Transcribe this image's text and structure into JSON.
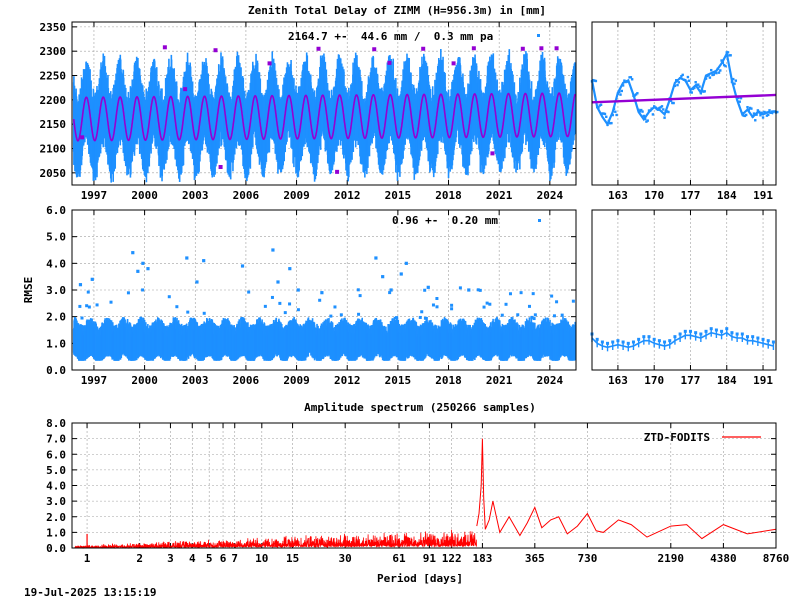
{
  "title": "Zenith Total Delay of ZIMM (H=956.3m) in [mm]",
  "timestamp": "19-Jul-2025 13:15:19",
  "colors": {
    "data": "#1e90ff",
    "model": "#9400d3",
    "outlier": "#9400d3",
    "spectrum": "#ff0000",
    "grid": "#a0a0a0"
  },
  "chart_data": [
    {
      "id": "ztd_timeseries",
      "type": "scatter",
      "title": "Zenith Total Delay of ZIMM (H=956.3m) in [mm]",
      "annotation": "2164.7 +-  44.6 mm /  0.3 mm pa",
      "ylabel": "",
      "xlim": [
        1995.7,
        2025.55
      ],
      "ylim": [
        2025,
        2360
      ],
      "x_ticks": [
        "1997",
        "2000",
        "2003",
        "2006",
        "2009",
        "2012",
        "2015",
        "2018",
        "2021",
        "2024"
      ],
      "x_tick_values": [
        1997,
        2000,
        2003,
        2006,
        2009,
        2012,
        2015,
        2018,
        2021,
        2024
      ],
      "y_ticks": [
        "2050",
        "2100",
        "2150",
        "2200",
        "2250",
        "2300",
        "2350"
      ],
      "y_tick_values": [
        2050,
        2100,
        2150,
        2200,
        2250,
        2300,
        2350
      ],
      "series": [
        {
          "kind": "seasonal_range",
          "start_year": 1995.8,
          "end_year": 2025.5,
          "mean": 2164.7,
          "amplitude": 44.6,
          "trend_mm_per_year": 0.3,
          "spread": 60
        },
        {
          "kind": "model_fit",
          "mean": 2164.7,
          "amplitude": 44.6,
          "trend_mm_per_year": 0.3
        },
        {
          "kind": "outliers",
          "x": [
            1996.3,
            2001.2,
            2002.4,
            2004.2,
            2004.5,
            2007.4,
            2010.3,
            2011.4,
            2013.6,
            2014.5,
            2016.5,
            2018.3,
            2019.5,
            2020.6,
            2022.4,
            2023.5,
            2024.4
          ],
          "y": [
            2123,
            2308,
            2222,
            2302,
            2062,
            2275,
            2305,
            2052,
            2304,
            2276,
            2305,
            2275,
            2306,
            2090,
            2305,
            2306,
            2306
          ]
        }
      ]
    },
    {
      "id": "ztd_zoom",
      "type": "line",
      "xlim": [
        158,
        193.5
      ],
      "ylim": [
        2025,
        2360
      ],
      "x_ticks": [
        "163",
        "170",
        "177",
        "184",
        "191"
      ],
      "x_tick_values": [
        163,
        170,
        177,
        184,
        191
      ],
      "series": [
        {
          "kind": "data",
          "x": [
            158,
            159,
            160,
            161,
            162,
            163,
            164,
            165,
            166,
            167,
            168,
            169,
            170,
            171,
            172,
            173,
            174,
            175,
            176,
            177,
            178,
            179,
            180,
            181,
            182,
            183,
            184,
            185,
            186,
            187,
            188,
            189,
            190,
            191,
            192,
            193
          ],
          "y": [
            2240,
            2185,
            2165,
            2150,
            2175,
            2215,
            2235,
            2240,
            2210,
            2175,
            2160,
            2175,
            2185,
            2180,
            2170,
            2200,
            2235,
            2245,
            2240,
            2220,
            2230,
            2215,
            2250,
            2255,
            2260,
            2275,
            2295,
            2240,
            2200,
            2170,
            2180,
            2165,
            2175,
            2170,
            2175,
            2172
          ]
        },
        {
          "kind": "model_fit",
          "x": [
            158,
            193.5
          ],
          "y": [
            2195,
            2210
          ]
        }
      ]
    },
    {
      "id": "rmse_timeseries",
      "type": "scatter",
      "annotation": "0.96 +-  0.20 mm",
      "ylabel": "RMSE",
      "xlim": [
        1995.7,
        2025.55
      ],
      "ylim": [
        0,
        6
      ],
      "x_ticks": [
        "1997",
        "2000",
        "2003",
        "2006",
        "2009",
        "2012",
        "2015",
        "2018",
        "2021",
        "2024"
      ],
      "x_tick_values": [
        1997,
        2000,
        2003,
        2006,
        2009,
        2012,
        2015,
        2018,
        2021,
        2024
      ],
      "y_ticks": [
        "0.0",
        "1.0",
        "2.0",
        "3.0",
        "4.0",
        "5.0",
        "6.0"
      ],
      "y_tick_values": [
        0,
        1,
        2,
        3,
        4,
        5,
        6
      ],
      "series": [
        {
          "kind": "band",
          "start_year": 1995.8,
          "end_year": 2025.5,
          "mean": 0.96,
          "spread": 0.6
        },
        {
          "kind": "outliers",
          "x": [
            1996.2,
            1996.9,
            1999.3,
            1999.6,
            1999.9,
            2000.2,
            2002.5,
            2003.1,
            2003.5,
            2005.8,
            2007.6,
            2007.9,
            2008.6,
            2009.1,
            2010.5,
            2013.7,
            2014.1,
            2014.6,
            2015.2,
            2015.5,
            2016.8,
            2019.2
          ],
          "y": [
            3.2,
            3.4,
            4.4,
            3.7,
            4.0,
            3.8,
            4.2,
            3.3,
            4.1,
            3.9,
            4.5,
            3.3,
            3.8,
            3.0,
            2.9,
            4.2,
            3.5,
            3.0,
            3.6,
            4.0,
            3.1,
            3.0
          ]
        }
      ]
    },
    {
      "id": "rmse_zoom",
      "type": "line",
      "xlim": [
        158,
        193.5
      ],
      "ylim": [
        0,
        6
      ],
      "x_ticks": [
        "163",
        "170",
        "177",
        "184",
        "191"
      ],
      "x_tick_values": [
        163,
        170,
        177,
        184,
        191
      ],
      "series": [
        {
          "kind": "data",
          "x": [
            158,
            159,
            160,
            161,
            162,
            163,
            164,
            165,
            166,
            167,
            168,
            169,
            170,
            171,
            172,
            173,
            174,
            175,
            176,
            177,
            178,
            179,
            180,
            181,
            182,
            183,
            184,
            185,
            186,
            187,
            188,
            189,
            190,
            191,
            192,
            193
          ],
          "y": [
            1.2,
            1.0,
            0.9,
            0.85,
            0.9,
            0.95,
            0.9,
            0.85,
            0.9,
            1.0,
            1.1,
            1.1,
            1.0,
            0.95,
            0.9,
            0.95,
            1.1,
            1.2,
            1.3,
            1.3,
            1.25,
            1.2,
            1.3,
            1.4,
            1.35,
            1.3,
            1.4,
            1.25,
            1.2,
            1.2,
            1.1,
            1.1,
            1.05,
            1.0,
            0.95,
            0.9
          ]
        }
      ]
    },
    {
      "id": "amplitude_spectrum",
      "type": "line",
      "title": "Amplitude spectrum (250266 samples)",
      "xlabel": "Period [days]",
      "legend": "ZTD-FODITS",
      "legend_position": "top-right",
      "x_scale": "log",
      "xlim": [
        0.82,
        8760
      ],
      "ylim": [
        0,
        8
      ],
      "x_ticks": [
        "1",
        "2",
        "3",
        "4",
        "5",
        "6",
        "7",
        "10",
        "15",
        "30",
        "61",
        "91",
        "122",
        "183",
        "365",
        "730",
        "2190",
        "4380",
        "8760"
      ],
      "x_tick_values": [
        1,
        2,
        3,
        4,
        5,
        6,
        7,
        10,
        15,
        30,
        61,
        91,
        122,
        183,
        365,
        730,
        2190,
        4380,
        8760
      ],
      "y_ticks": [
        "0.0",
        "1.0",
        "2.0",
        "3.0",
        "4.0",
        "5.0",
        "6.0",
        "7.0",
        "8.0"
      ],
      "y_tick_values": [
        0,
        1,
        2,
        3,
        4,
        5,
        6,
        7,
        8
      ],
      "peaks": {
        "x": [
          0.5,
          1,
          91,
          122,
          183,
          210,
          365,
          500,
          730,
          900,
          1300,
          2190,
          3000,
          8760
        ],
        "y": [
          0.9,
          0.95,
          1.3,
          1.5,
          7.0,
          3.0,
          2.6,
          2.0,
          2.2,
          1.0,
          1.5,
          1.4,
          0.9,
          1.2
        ]
      }
    }
  ]
}
